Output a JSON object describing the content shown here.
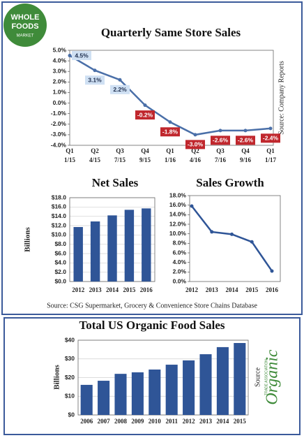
{
  "logo": {
    "line1": "WHOLE",
    "line2": "FOODS",
    "line3": "MARKET"
  },
  "source_note": "Source: CSG Supermarket, Grocery & Convenience Store Chains Database",
  "organic_logo": {
    "name": "Organic",
    "sub": "TRADE ASSOCIATION"
  },
  "chart_data": [
    {
      "type": "line",
      "title": "Quarterly Same Store Sales",
      "source": "Source: Company Reports",
      "categories": [
        "Q1",
        "Q2",
        "Q3",
        "Q4",
        "Q1",
        "Q2",
        "Q3",
        "Q4",
        "Q1"
      ],
      "dates": [
        "1/15",
        "4/15",
        "7/15",
        "9/15",
        "1/16",
        "4/16",
        "7/16",
        "9/16",
        "1/17"
      ],
      "values": [
        4.5,
        3.1,
        2.2,
        -0.2,
        -1.8,
        -3.0,
        -2.6,
        -2.6,
        -2.4
      ],
      "value_labels": [
        "4.5%",
        "3.1%",
        "2.2%",
        "-0.2%",
        "-1.8%",
        "-3.0%",
        "-2.6%",
        "-2.6%",
        "-2.4%"
      ],
      "color": "#4a6fa8",
      "ylim": [
        -4,
        5
      ],
      "yticks": [
        {
          "value": -4,
          "label": "-4.0%"
        },
        {
          "value": -3,
          "label": "-3.0%"
        },
        {
          "value": -2,
          "label": "-2.0%"
        },
        {
          "value": -1,
          "label": "-1.0%"
        },
        {
          "value": 0,
          "label": "0.0%"
        },
        {
          "value": 1,
          "label": "1.0%"
        },
        {
          "value": 2,
          "label": "2.0%"
        },
        {
          "value": 3,
          "label": "3.0%"
        },
        {
          "value": 4,
          "label": "4.0%"
        },
        {
          "value": 5,
          "label": "5.0%"
        }
      ],
      "grid": false
    },
    {
      "type": "bar",
      "title": "Net Sales",
      "y_label": "Billions",
      "categories": [
        "2012",
        "2013",
        "2014",
        "2015",
        "2016"
      ],
      "values": [
        11.7,
        12.9,
        14.2,
        15.4,
        15.7
      ],
      "color": "#2f5597",
      "ylim": [
        0,
        18
      ],
      "yticks": [
        {
          "value": 0,
          "label": "$0.0"
        },
        {
          "value": 2,
          "label": "$2.0"
        },
        {
          "value": 4,
          "label": "$4.0"
        },
        {
          "value": 6,
          "label": "$6.0"
        },
        {
          "value": 8,
          "label": "$8.0"
        },
        {
          "value": 10,
          "label": "$10.0"
        },
        {
          "value": 12,
          "label": "$12.0"
        },
        {
          "value": 14,
          "label": "$14.0"
        },
        {
          "value": 16,
          "label": "$16.0"
        },
        {
          "value": 18,
          "label": "$18.0"
        }
      ],
      "grid": true
    },
    {
      "type": "line",
      "title": "Sales Growth",
      "categories": [
        "2012",
        "2013",
        "2014",
        "2015",
        "2016"
      ],
      "values": [
        15.8,
        10.4,
        9.9,
        8.3,
        2.2
      ],
      "color": "#2f5597",
      "ylim": [
        0,
        18
      ],
      "yticks": [
        {
          "value": 0,
          "label": "0.0%"
        },
        {
          "value": 2,
          "label": "2.0%"
        },
        {
          "value": 4,
          "label": "4.0%"
        },
        {
          "value": 6,
          "label": "6.0%"
        },
        {
          "value": 8,
          "label": "8.0%"
        },
        {
          "value": 10,
          "label": "10.0%"
        },
        {
          "value": 12,
          "label": "12.0%"
        },
        {
          "value": 14,
          "label": "14.0%"
        },
        {
          "value": 16,
          "label": "16.0%"
        },
        {
          "value": 18,
          "label": "18.0%"
        }
      ],
      "grid": false
    },
    {
      "type": "bar",
      "title": "Total US Organic Food Sales",
      "y_label": "Billions",
      "source": "Source",
      "categories": [
        "2006",
        "2007",
        "2008",
        "2009",
        "2010",
        "2011",
        "2012",
        "2013",
        "2014",
        "2015"
      ],
      "values": [
        16.1,
        18.3,
        22.0,
        22.8,
        24.3,
        26.9,
        29.2,
        32.5,
        36.3,
        38.5
      ],
      "color": "#2f5597",
      "ylim": [
        0,
        40
      ],
      "yticks": [
        {
          "value": 0,
          "label": "$0"
        },
        {
          "value": 10,
          "label": "$10"
        },
        {
          "value": 20,
          "label": "$20"
        },
        {
          "value": 30,
          "label": "$30"
        },
        {
          "value": 40,
          "label": "$40"
        }
      ],
      "grid": true
    }
  ]
}
